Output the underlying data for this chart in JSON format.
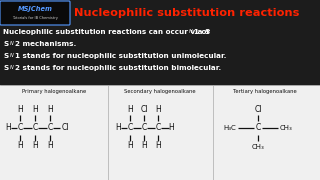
{
  "bg_color": "#1c1c1c",
  "title_text": "Nucleophilic substitution reactions",
  "title_color": "#ff2200",
  "logo_text1": "MSJChem",
  "logo_text2": "Tutorials for IB Chemistry",
  "logo_color1": "#5599ff",
  "logo_color2": "#cccccc",
  "logo_box_color": "#5599ff",
  "body_bg": "#1c1c1c",
  "body_text_color": "#ffffff",
  "box_bg": "#f0f0f0",
  "box_text_color": "#111111",
  "struct_labels": [
    "Primary halogenoalkane",
    "Secondary halogenoalkane",
    "Tertiary halogenoalkane"
  ]
}
